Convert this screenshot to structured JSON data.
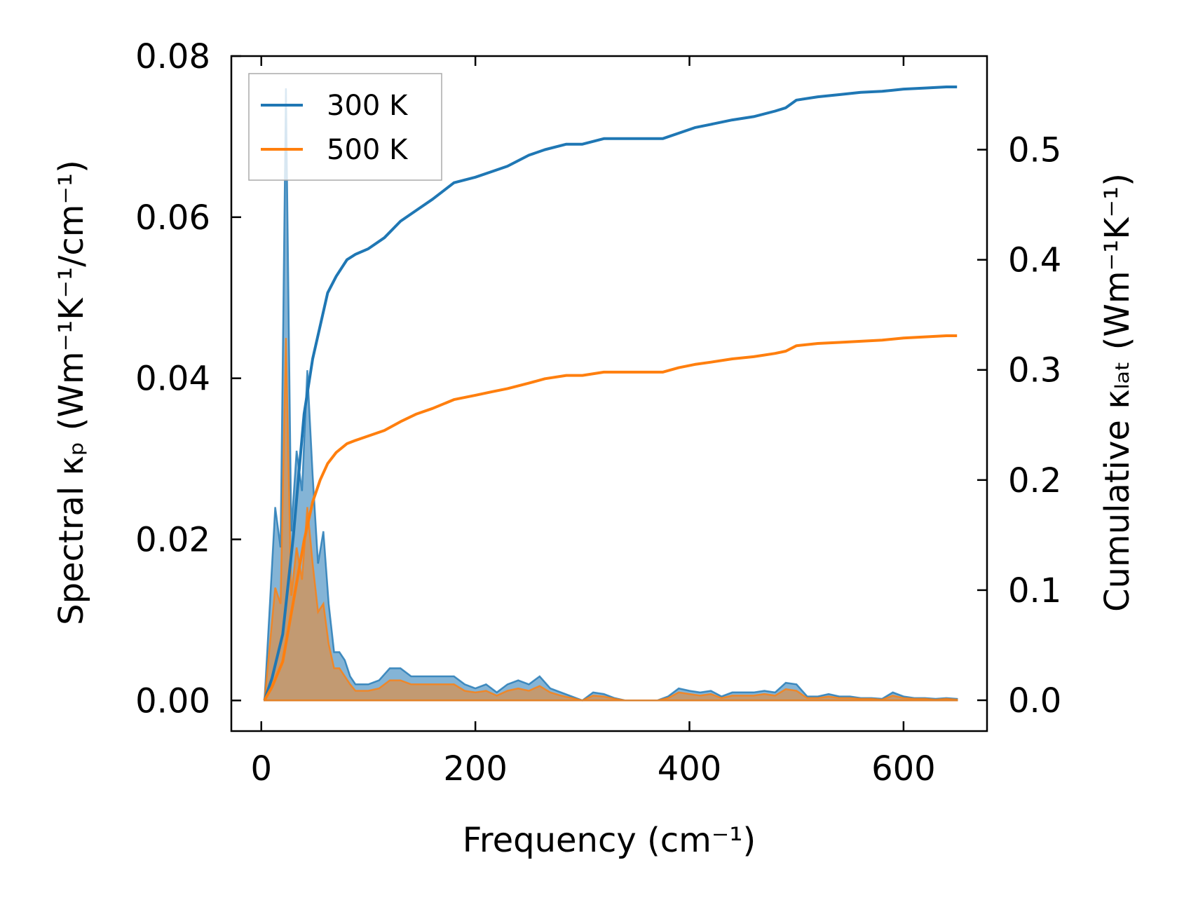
{
  "chart_data": {
    "type": "line",
    "xlabel": "Frequency (cm⁻¹)",
    "ylabel": "Spectral κₚ (Wm⁻¹K⁻¹/cm⁻¹)",
    "y2label": "Cumulative κₗₐₜ (Wm⁻¹K⁻¹)",
    "xlim": [
      -28,
      678
    ],
    "ylim": [
      -0.0038,
      0.08
    ],
    "y2lim": [
      -0.028,
      0.585
    ],
    "xticks": [
      0,
      200,
      400,
      600
    ],
    "yticks": [
      0.0,
      0.02,
      0.04,
      0.06,
      0.08
    ],
    "y2ticks": [
      0.0,
      0.1,
      0.2,
      0.3,
      0.4,
      0.5
    ],
    "xtick_labels": [
      "0",
      "200",
      "400",
      "600"
    ],
    "ytick_labels": [
      "0.00",
      "0.02",
      "0.04",
      "0.06",
      "0.08"
    ],
    "y2tick_labels": [
      "0.0",
      "0.1",
      "0.2",
      "0.3",
      "0.4",
      "0.5"
    ],
    "legend_position": "top-left",
    "grid": false,
    "spectral_series": [
      {
        "name": "300 K",
        "color": "#1f77b4",
        "axis": "left",
        "x": [
          3,
          8,
          13,
          18,
          23,
          28,
          33,
          38,
          43,
          48,
          53,
          58,
          63,
          68,
          73,
          78,
          83,
          88,
          93,
          100,
          110,
          120,
          130,
          140,
          150,
          160,
          170,
          180,
          190,
          200,
          210,
          220,
          230,
          240,
          250,
          260,
          270,
          280,
          290,
          300,
          310,
          320,
          330,
          340,
          350,
          360,
          370,
          380,
          390,
          400,
          410,
          420,
          430,
          440,
          450,
          460,
          470,
          480,
          490,
          500,
          510,
          520,
          530,
          540,
          550,
          560,
          570,
          580,
          590,
          600,
          610,
          620,
          630,
          640,
          650
        ],
        "y": [
          0.0,
          0.012,
          0.024,
          0.019,
          0.076,
          0.021,
          0.031,
          0.026,
          0.041,
          0.028,
          0.017,
          0.021,
          0.012,
          0.006,
          0.006,
          0.005,
          0.003,
          0.002,
          0.002,
          0.002,
          0.0025,
          0.004,
          0.004,
          0.003,
          0.003,
          0.003,
          0.003,
          0.003,
          0.002,
          0.0015,
          0.002,
          0.001,
          0.002,
          0.0025,
          0.002,
          0.003,
          0.0015,
          0.001,
          0.0005,
          0.0,
          0.001,
          0.0008,
          0.0003,
          0.0,
          0.0,
          0.0,
          0.0,
          0.0005,
          0.0015,
          0.0012,
          0.001,
          0.0012,
          0.0005,
          0.001,
          0.001,
          0.001,
          0.0012,
          0.001,
          0.0022,
          0.002,
          0.0005,
          0.0005,
          0.0008,
          0.0005,
          0.0005,
          0.0003,
          0.0003,
          0.0002,
          0.001,
          0.0005,
          0.0003,
          0.0003,
          0.0002,
          0.0003,
          0.0002
        ]
      },
      {
        "name": "500 K",
        "color": "#ff7f0e",
        "axis": "left",
        "x": [
          3,
          8,
          13,
          18,
          23,
          28,
          33,
          38,
          43,
          48,
          53,
          58,
          63,
          68,
          73,
          78,
          83,
          88,
          93,
          100,
          110,
          120,
          130,
          140,
          150,
          160,
          170,
          180,
          190,
          200,
          210,
          220,
          230,
          240,
          250,
          260,
          270,
          280,
          290,
          300,
          310,
          320,
          330,
          340,
          350,
          360,
          370,
          380,
          390,
          400,
          410,
          420,
          430,
          440,
          450,
          460,
          470,
          480,
          490,
          500,
          510,
          520,
          530,
          540,
          550,
          560,
          570,
          580,
          590,
          600,
          610,
          620,
          630,
          640,
          650
        ],
        "y": [
          0.0,
          0.007,
          0.014,
          0.012,
          0.045,
          0.013,
          0.019,
          0.015,
          0.024,
          0.017,
          0.011,
          0.012,
          0.007,
          0.004,
          0.004,
          0.003,
          0.002,
          0.0012,
          0.0012,
          0.0012,
          0.0015,
          0.0025,
          0.0025,
          0.002,
          0.002,
          0.002,
          0.002,
          0.002,
          0.0012,
          0.001,
          0.0012,
          0.0006,
          0.0012,
          0.0015,
          0.0012,
          0.0018,
          0.001,
          0.0006,
          0.0003,
          0.0,
          0.0006,
          0.0005,
          0.0002,
          0.0,
          0.0,
          0.0,
          0.0,
          0.0003,
          0.001,
          0.0008,
          0.0006,
          0.0008,
          0.0003,
          0.0006,
          0.0006,
          0.0006,
          0.0008,
          0.0006,
          0.0014,
          0.0012,
          0.0003,
          0.0003,
          0.0005,
          0.0003,
          0.0003,
          0.0002,
          0.0002,
          0.0001,
          0.0006,
          0.0003,
          0.0002,
          0.0002,
          0.0001,
          0.0002,
          0.0001
        ]
      }
    ],
    "series": [
      {
        "name": "300 K",
        "color": "#1f77b4",
        "axis": "right",
        "x": [
          3,
          10,
          20,
          30,
          40,
          48,
          55,
          62,
          70,
          80,
          88,
          100,
          115,
          130,
          145,
          160,
          180,
          200,
          215,
          230,
          250,
          265,
          285,
          300,
          320,
          340,
          360,
          375,
          390,
          405,
          420,
          440,
          460,
          480,
          490,
          500,
          520,
          540,
          560,
          580,
          600,
          620,
          640,
          650
        ],
        "y": [
          0.0,
          0.02,
          0.06,
          0.15,
          0.26,
          0.31,
          0.34,
          0.37,
          0.385,
          0.4,
          0.405,
          0.41,
          0.42,
          0.435,
          0.445,
          0.455,
          0.47,
          0.475,
          0.48,
          0.485,
          0.495,
          0.5,
          0.505,
          0.505,
          0.51,
          0.51,
          0.51,
          0.51,
          0.515,
          0.52,
          0.523,
          0.527,
          0.53,
          0.535,
          0.538,
          0.545,
          0.548,
          0.55,
          0.552,
          0.553,
          0.555,
          0.556,
          0.557,
          0.557
        ]
      },
      {
        "name": "500 K",
        "color": "#ff7f0e",
        "axis": "right",
        "x": [
          3,
          10,
          20,
          30,
          40,
          48,
          55,
          62,
          70,
          80,
          88,
          100,
          115,
          130,
          145,
          160,
          180,
          200,
          215,
          230,
          250,
          265,
          285,
          300,
          320,
          340,
          360,
          375,
          390,
          405,
          420,
          440,
          460,
          480,
          490,
          500,
          520,
          540,
          560,
          580,
          600,
          620,
          640,
          650
        ],
        "y": [
          0.0,
          0.012,
          0.035,
          0.09,
          0.145,
          0.18,
          0.2,
          0.215,
          0.225,
          0.233,
          0.236,
          0.24,
          0.245,
          0.253,
          0.26,
          0.265,
          0.273,
          0.277,
          0.28,
          0.283,
          0.288,
          0.292,
          0.295,
          0.295,
          0.298,
          0.298,
          0.298,
          0.298,
          0.302,
          0.305,
          0.307,
          0.31,
          0.312,
          0.315,
          0.317,
          0.322,
          0.324,
          0.325,
          0.326,
          0.327,
          0.329,
          0.33,
          0.331,
          0.331
        ]
      }
    ]
  }
}
